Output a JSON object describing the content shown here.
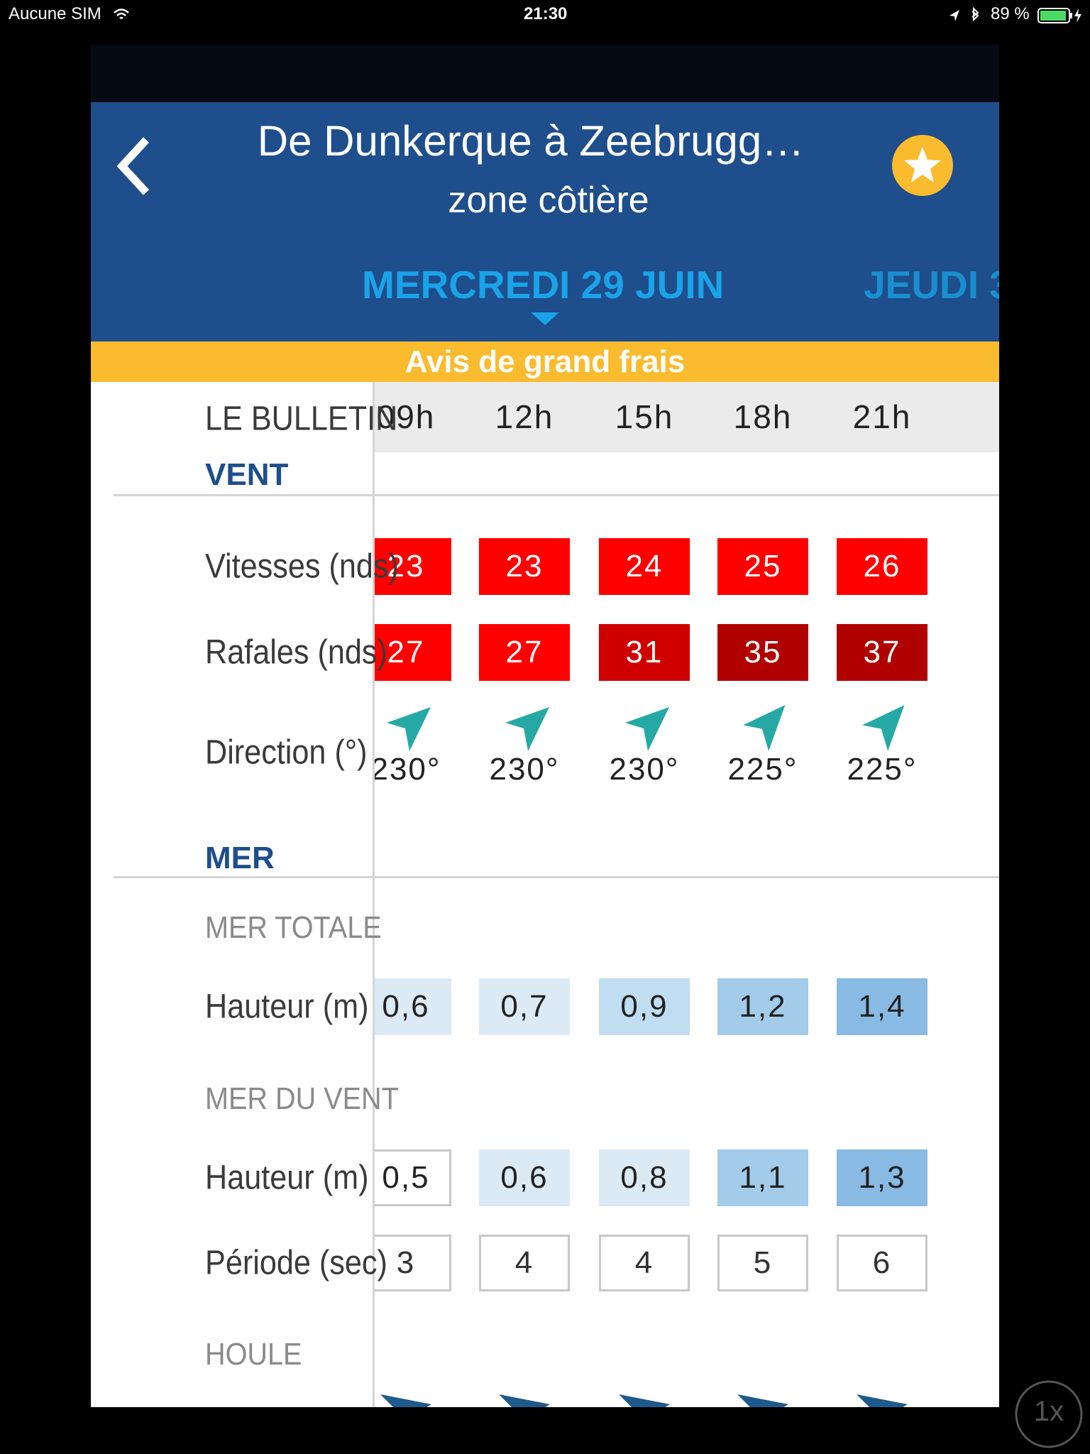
{
  "status_bar": {
    "carrier": "Aucune SIM",
    "time": "21:30",
    "battery": "89 %"
  },
  "header": {
    "title": "De Dunkerque à Zeebrugg…",
    "subtitle": "zone côtière"
  },
  "tabs": [
    "MERCREDI 29 JUIN",
    "JEUDI 3"
  ],
  "alert": "Avis de grand frais",
  "bulletin": {
    "label": "LE BULLETIN",
    "hours": [
      "09h",
      "12h",
      "15h",
      "18h",
      "21h"
    ]
  },
  "wind": {
    "title": "VENT",
    "speed": {
      "label": "Vitesses (nds)",
      "values": [
        23,
        23,
        24,
        25,
        26
      ],
      "colors": [
        "#ff0000",
        "#ff0000",
        "#ff0000",
        "#ff0000",
        "#ff0000"
      ]
    },
    "gusts": {
      "label": "Rafales (nds)",
      "values": [
        27,
        27,
        31,
        35,
        37
      ],
      "colors": [
        "#ff0000",
        "#ff0000",
        "#d00000",
        "#b00000",
        "#b00000"
      ]
    },
    "direction": {
      "label": "Direction (°)",
      "values": [
        "230°",
        "230°",
        "230°",
        "225°",
        "225°"
      ]
    }
  },
  "sea": {
    "title": "MER",
    "total": {
      "title": "MER TOTALE",
      "height": {
        "label": "Hauteur (m)",
        "values": [
          "0,6",
          "0,7",
          "0,9",
          "1,2",
          "1,4"
        ],
        "colors": [
          "#dceaf5",
          "#dceaf5",
          "#c0ddf1",
          "#a3cbea",
          "#88bae3"
        ]
      }
    },
    "wind_sea": {
      "title": "MER DU VENT",
      "height": {
        "label": "Hauteur (m)",
        "values": [
          "0,5",
          "0,6",
          "0,8",
          "1,1",
          "1,3"
        ],
        "colors": [
          "#ffffff",
          "#dceaf5",
          "#dceaf5",
          "#a3cbea",
          "#88bae3"
        ]
      },
      "period": {
        "label": "Période (sec)",
        "values": [
          3,
          4,
          4,
          5,
          6
        ],
        "colors": [
          "#ffffff",
          "#ffffff",
          "#ffffff",
          "#ffffff",
          "#ffffff"
        ]
      }
    },
    "swell": {
      "title": "HOULE"
    }
  },
  "zoom": "1x"
}
